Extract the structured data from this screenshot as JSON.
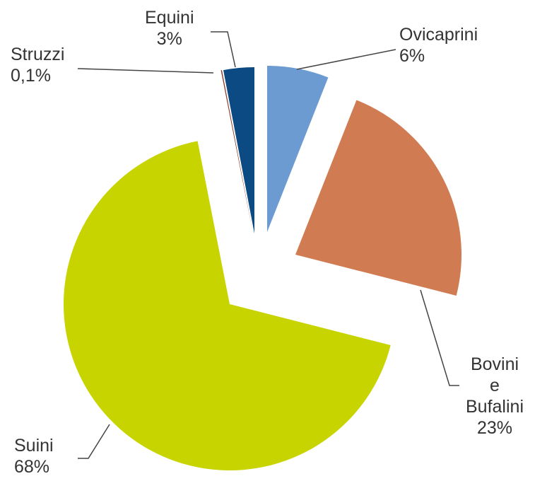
{
  "chart_data": {
    "type": "pie",
    "categories": [
      "Ovicaprini",
      "Bovini e Bufalini",
      "Suini",
      "Struzzi",
      "Equini"
    ],
    "values": [
      6,
      23,
      68,
      0.1,
      3
    ],
    "value_labels": [
      "6%",
      "23%",
      "68%",
      "0,1%",
      "3%"
    ],
    "colors": [
      "#6b9bd1",
      "#d07b52",
      "#c8d400",
      "#8c3b2a",
      "#0b4a82"
    ]
  }
}
